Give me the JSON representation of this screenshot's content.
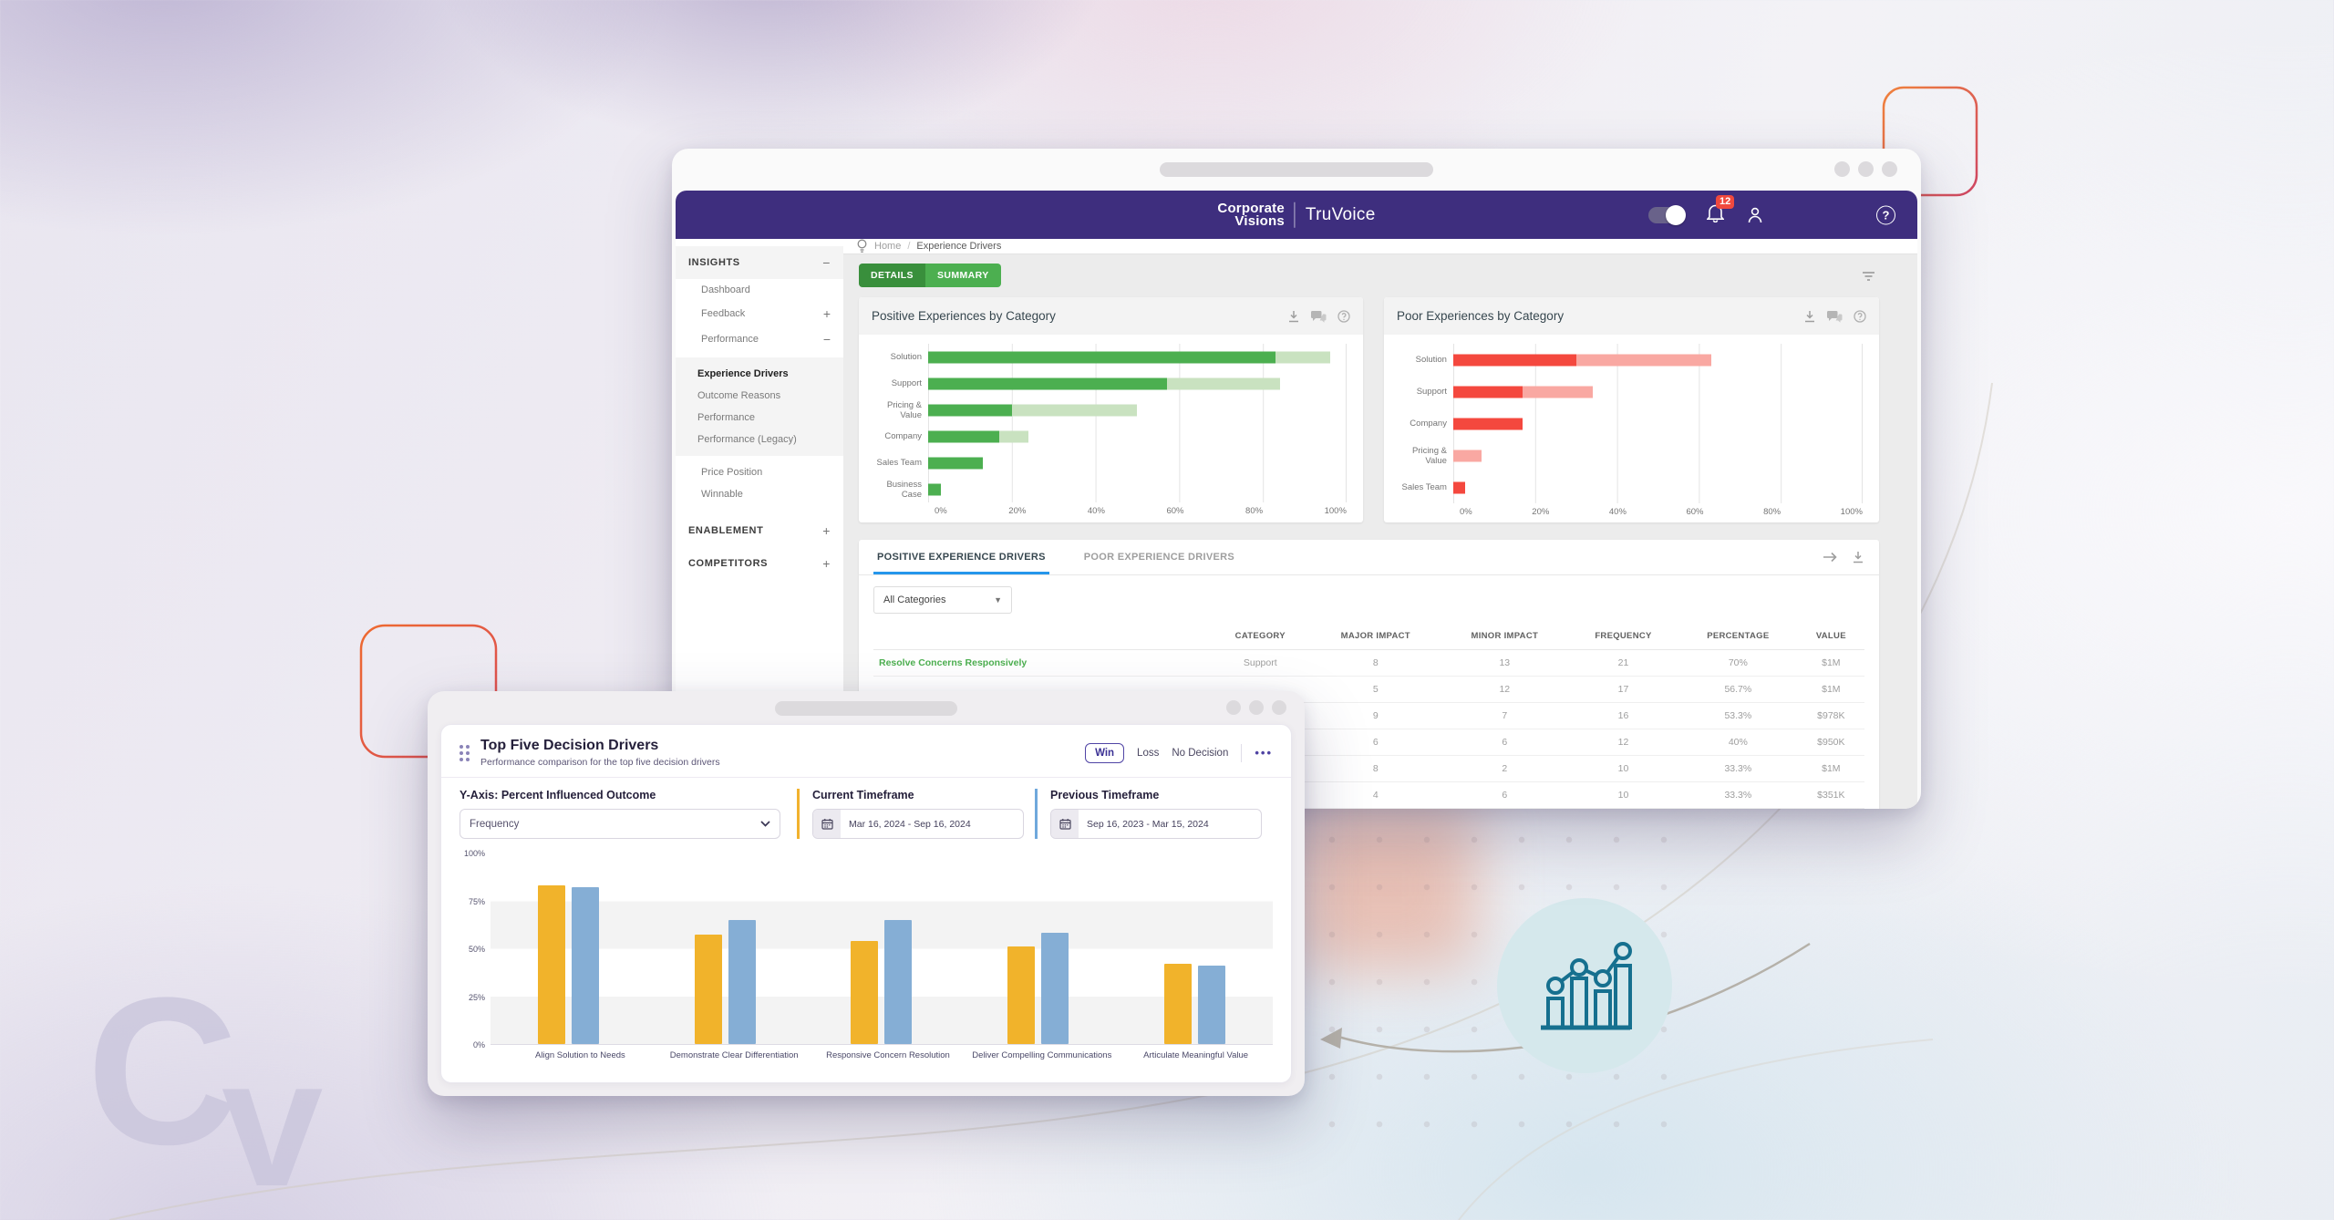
{
  "page": {
    "watermark_letters": [
      "C",
      "v"
    ]
  },
  "main_window": {
    "topbar": {
      "brand_top": "Corporate",
      "brand_bottom": "Visions",
      "product": "TruVoice",
      "notification_count": "12",
      "help": "?"
    },
    "breadcrumb": {
      "home": "Home",
      "separator": "/",
      "current": "Experience Drivers"
    },
    "sidebar": {
      "sections": {
        "insights": {
          "label": "INSIGHTS",
          "toggle": "−"
        },
        "enablement": {
          "label": "ENABLEMENT",
          "toggle": "+"
        },
        "competitors": {
          "label": "COMPETITORS",
          "toggle": "+"
        }
      },
      "items": [
        {
          "label": "Dashboard",
          "toggle": ""
        },
        {
          "label": "Feedback",
          "toggle": "+"
        },
        {
          "label": "Performance",
          "toggle": "−"
        },
        {
          "label": "Experience Drivers"
        },
        {
          "label": "Outcome Reasons"
        },
        {
          "label": "Performance"
        },
        {
          "label": "Performance (Legacy)"
        },
        {
          "label": "Price Position"
        },
        {
          "label": "Winnable"
        }
      ]
    },
    "view_tabs": {
      "details": "DETAILS",
      "summary": "SUMMARY"
    },
    "table": {
      "tabs": {
        "positive": "POSITIVE EXPERIENCE DRIVERS",
        "poor": "POOR EXPERIENCE DRIVERS"
      },
      "filter_value": "All Categories",
      "columns": [
        "CATEGORY",
        "MAJOR IMPACT",
        "MINOR IMPACT",
        "FREQUENCY",
        "PERCENTAGE",
        "VALUE"
      ],
      "rows": [
        {
          "name": "Resolve Concerns Responsively",
          "category": "Support",
          "major": "8",
          "minor": "13",
          "frequency": "21",
          "percentage": "70%",
          "value": "$1M"
        },
        {
          "name": "",
          "category": "",
          "major": "5",
          "minor": "12",
          "frequency": "17",
          "percentage": "56.7%",
          "value": "$1M"
        },
        {
          "name": "",
          "category": "",
          "major": "9",
          "minor": "7",
          "frequency": "16",
          "percentage": "53.3%",
          "value": "$978K"
        },
        {
          "name": "",
          "category": "",
          "major": "6",
          "minor": "6",
          "frequency": "12",
          "percentage": "40%",
          "value": "$950K"
        },
        {
          "name": "",
          "category": "",
          "major": "8",
          "minor": "2",
          "frequency": "10",
          "percentage": "33.3%",
          "value": "$1M"
        },
        {
          "name": "",
          "category": "",
          "major": "4",
          "minor": "6",
          "frequency": "10",
          "percentage": "33.3%",
          "value": "$351K"
        }
      ]
    }
  },
  "decision_window": {
    "title": "Top Five Decision Drivers",
    "subtitle": "Performance comparison for the top five decision drivers",
    "outcome_tabs": {
      "win": "Win",
      "loss": "Loss",
      "no_decision": "No Decision"
    },
    "menu": "•••",
    "yaxis_label": "Y-Axis: Percent Influenced Outcome",
    "yaxis_value": "Frequency",
    "current_timeframe": {
      "label": "Current Timeframe",
      "value": "Mar 16, 2024 - Sep 16, 2024"
    },
    "previous_timeframe": {
      "label": "Previous Timeframe",
      "value": "Sep 16, 2023 - Mar 15, 2024"
    }
  },
  "chart_data": [
    {
      "id": "positive_experiences",
      "type": "bar",
      "orientation": "horizontal",
      "stacked": true,
      "title": "Positive Experiences by Category",
      "categories": [
        "Solution",
        "Support",
        "Pricing & Value",
        "Company",
        "Sales Team",
        "Business Case"
      ],
      "series": [
        {
          "name": "major",
          "color": "#4caf50",
          "values": [
            83,
            57,
            20,
            17,
            13,
            3
          ]
        },
        {
          "name": "minor",
          "color": "#c9e2c0",
          "values": [
            13,
            27,
            30,
            7,
            0,
            0
          ]
        }
      ],
      "xticks": [
        "0%",
        "20%",
        "40%",
        "60%",
        "80%",
        "100%"
      ],
      "xlim": [
        0,
        100
      ],
      "grid": true
    },
    {
      "id": "poor_experiences",
      "type": "bar",
      "orientation": "horizontal",
      "stacked": true,
      "title": "Poor Experiences by Category",
      "categories": [
        "Solution",
        "Support",
        "Company",
        "Pricing & Value",
        "Sales Team"
      ],
      "series": [
        {
          "name": "major",
          "color": "#f4483e",
          "values": [
            30,
            17,
            17,
            0,
            3
          ]
        },
        {
          "name": "minor",
          "color": "#f9a8a2",
          "values": [
            33,
            17,
            0,
            7,
            0
          ]
        }
      ],
      "xticks": [
        "0%",
        "20%",
        "40%",
        "60%",
        "80%",
        "100%"
      ],
      "xlim": [
        0,
        100
      ],
      "grid": true
    },
    {
      "id": "top_five_decision_drivers",
      "type": "grouped_bar",
      "orientation": "vertical",
      "title": "Top Five Decision Drivers",
      "categories": [
        "Align Solution to Needs",
        "Demonstrate Clear Differentiation",
        "Responsive Concern Resolution",
        "Deliver Compelling Communications",
        "Articulate Meaningful Value"
      ],
      "series": [
        {
          "name": "Current Timeframe",
          "color": "#f1b32b",
          "values": [
            83,
            57,
            54,
            51,
            42
          ]
        },
        {
          "name": "Previous Timeframe",
          "color": "#85aed5",
          "values": [
            82,
            65,
            65,
            58,
            41
          ]
        }
      ],
      "yticks": [
        "100%",
        "75%",
        "50%",
        "25%",
        "0%"
      ],
      "ylim": [
        0,
        100
      ],
      "band_shading": true
    }
  ]
}
